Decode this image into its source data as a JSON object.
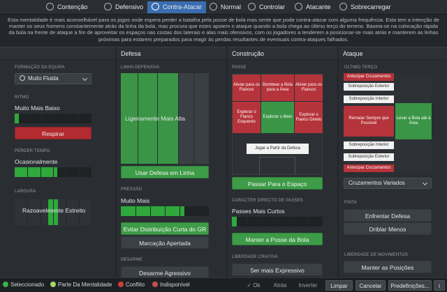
{
  "tabs": [
    {
      "label": "Contenção",
      "icon": "containment-icon"
    },
    {
      "label": "Defensivo",
      "icon": "defensive-icon"
    },
    {
      "label": "Contra-Atacar",
      "icon": "counter-attack-icon",
      "active": true
    },
    {
      "label": "Normal",
      "icon": "normal-icon"
    },
    {
      "label": "Controlar",
      "icon": "control-icon"
    },
    {
      "label": "Atacante",
      "icon": "attacking-icon"
    },
    {
      "label": "Sobrecarregar",
      "icon": "overload-icon"
    }
  ],
  "description": "Esta mentalidade é mais aconselhável para os jogos onde espera perder a batalha pela posse de bola mas sente que pode contra-atacar com alguma frequência. Esta tem a intenção de manter os seus homens constantemente atrás da linha da bola, mas procura que estes apoiem o ataque quando a bola chega ao último terço do terreno. Baseia-se na colocação rápida da bola na frente de ataque a fim de aproveitar os espaços nas costas dos laterais e alas mais ofensivos, com os jogadores a tenderem a posicionar-se mais atrás e manterem as linhas próximas para estarem preparados para reagir às perdas resultantes de eventuais contra-ataques falhados.",
  "columns": {
    "defense": "Defesa",
    "build": "Construção",
    "attack": "Ataque"
  },
  "general": {
    "formation_title": "FORMAÇÃO DA EQUIPA",
    "formation_value": "Muito Fluida",
    "rhythm_title": "RITMO",
    "rhythm_value": "Muito Mais Baixo",
    "rhythm_level": 0.05,
    "breathe_button": "Respirar",
    "time_waste_title": "PERDER TEMPO",
    "time_waste_value": "Ocasionalmente",
    "time_waste_level": 0.55,
    "width_title": "LARGURA",
    "width_value": "Razoavelmente Estreito",
    "width_level": 0.45
  },
  "defense": {
    "line_title": "LINHA DEFENSIVA",
    "line_value": "Ligeiramente Mais Alta",
    "line_level": 0.62,
    "line_button": "Usar Defesa em Linha",
    "press_title": "PRESSÃO",
    "press_value": "Muito Mais",
    "press_level": 0.72,
    "press_button1": "Evitar Distribuição Curta do GR",
    "press_button2": "Marcação Apertada",
    "tackle_title": "DESARME",
    "tackle_button": "Desarme Agressivo"
  },
  "build": {
    "pass_title": "PASSE",
    "zones": {
      "top_left": "Aliviar para os Flancos",
      "top_mid": "Bombear a Bola para a Área",
      "top_right": "Aliviar para os Flancos",
      "mid_left": "Explorar o Flanco Esquerdo",
      "mid_mid": "Explorar o Meio",
      "mid_right": "Explorar o Flanco Direito",
      "bottom": "Jogar a Partir da Defesa"
    },
    "space_button": "Passar Para o Espaço",
    "direct_title": "CARÁCTER DIRECTO DE PASSES",
    "direct_value": "Passes Mais Curtos",
    "direct_level": 0.05,
    "possession_button": "Manter a Posse da Bola",
    "creative_title": "LIBERDADE CRIATIVA",
    "creative_button": "Ser mais Expressivo"
  },
  "attack": {
    "third_title": "ÚLTIMO TERÇO",
    "zones": {
      "early_cross_top": "Antecipar Cruzamentos",
      "overlap_out_top": "Sobreposição Exterior",
      "overlap_in_top": "Sobreposição Interior",
      "shoot": "Rematar Sempre que Possível",
      "to_box": "Levar a Bola até à Área",
      "overlap_in_bot": "Sobreposição Interior",
      "overlap_out_bot": "Sobreposição Exterior",
      "early_cross_bot": "Antecipar Cruzamentos"
    },
    "cross_select": "Cruzamentos Variados",
    "finish_title": "FINTA",
    "finish_button1": "Enfrentar Defesa",
    "finish_button2": "Driblar Menos",
    "freedom_title": "LIBERDADE DE MOVIMENTOS",
    "freedom_button": "Manter as Posições"
  },
  "footer": {
    "legend": [
      {
        "label": "Seleccionado",
        "color": "#3fb04a"
      },
      {
        "label": "Parte Da Mentalidade",
        "color": "#a6d46a"
      },
      {
        "label": "Conflito",
        "color": "#d03a3a"
      },
      {
        "label": "Indisponível",
        "color": "#c05050"
      }
    ],
    "ok": "Ok",
    "back": "Atrás",
    "forward": "Inverter",
    "clear": "Limpar",
    "cancel": "Cancelar",
    "presets": "Predefinições..."
  }
}
